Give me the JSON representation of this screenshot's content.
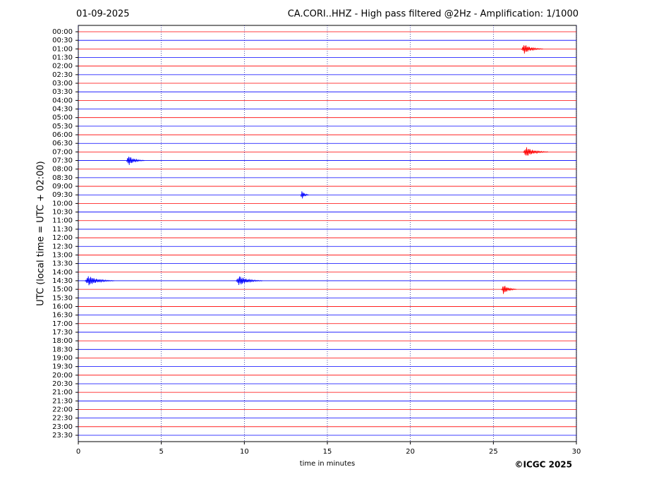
{
  "chart_data": {
    "type": "helicorder",
    "date": "01-09-2025",
    "title": "CA.CORI..HHZ - High pass filtered @2Hz - Amplification: 1/1000",
    "y_label": "UTC (local time = UTC + 02:00)",
    "x_label": "time in minutes",
    "credit": "©ICGC 2025",
    "categories": [
      "00:00",
      "00:30",
      "01:00",
      "01:30",
      "02:00",
      "02:30",
      "03:00",
      "03:30",
      "04:00",
      "04:30",
      "05:00",
      "05:30",
      "06:00",
      "06:30",
      "07:00",
      "07:30",
      "08:00",
      "08:30",
      "09:00",
      "09:30",
      "10:00",
      "10:30",
      "11:00",
      "11:30",
      "12:00",
      "12:30",
      "13:00",
      "13:30",
      "14:00",
      "14:30",
      "15:00",
      "15:30",
      "16:00",
      "16:30",
      "17:00",
      "17:30",
      "18:00",
      "18:30",
      "19:00",
      "19:30",
      "20:00",
      "20:30",
      "21:00",
      "21:30",
      "22:00",
      "22:30",
      "23:00",
      "23:30"
    ],
    "trace_colors": [
      "#ff0000",
      "#0000ff"
    ],
    "xlim": [
      0,
      30
    ],
    "xticks": [
      0,
      5,
      10,
      15,
      20,
      25,
      30
    ],
    "grid": true,
    "events": [
      {
        "trace": "01:00",
        "start": 26.7,
        "end": 28.0
      },
      {
        "trace": "07:00",
        "start": 26.8,
        "end": 28.3
      },
      {
        "trace": "07:30",
        "start": 2.9,
        "end": 4.0
      },
      {
        "trace": "09:30",
        "start": 13.4,
        "end": 13.9
      },
      {
        "trace": "14:30",
        "start": 0.4,
        "end": 2.2
      },
      {
        "trace": "14:30",
        "start": 9.5,
        "end": 11.1
      },
      {
        "trace": "15:00",
        "start": 25.5,
        "end": 26.4
      }
    ]
  }
}
